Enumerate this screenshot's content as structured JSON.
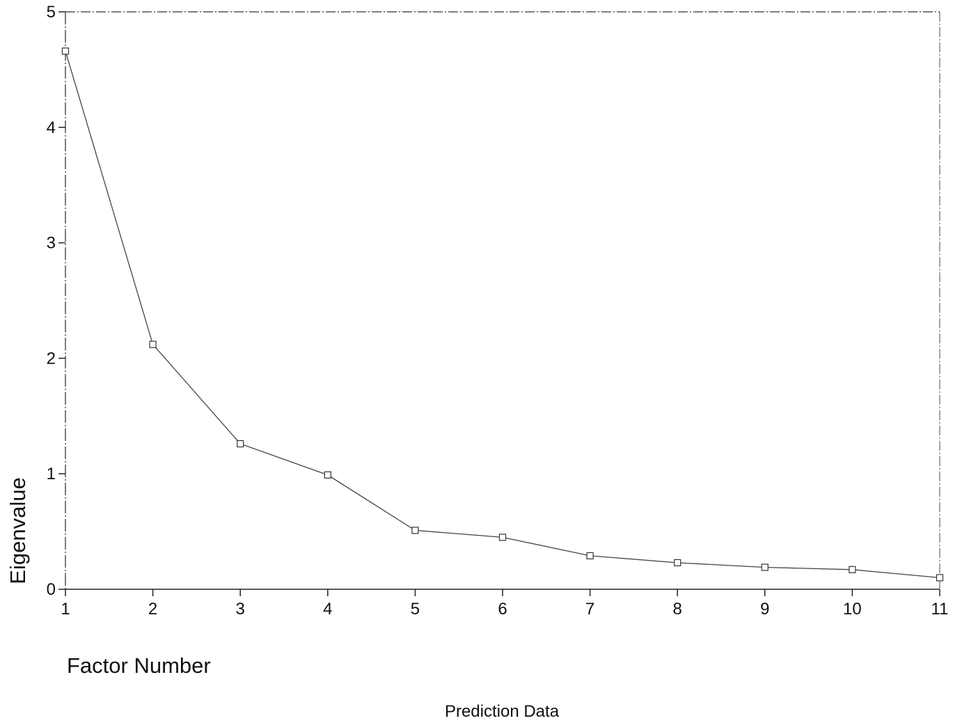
{
  "chart_data": {
    "type": "line",
    "title": "",
    "xlabel": "Factor Number",
    "ylabel": "Eigenvalue",
    "caption": "Prediction Data",
    "x": [
      1,
      2,
      3,
      4,
      5,
      6,
      7,
      8,
      9,
      10,
      11
    ],
    "xlim": [
      1,
      11
    ],
    "ylim": [
      0,
      5
    ],
    "x_ticks": [
      1,
      2,
      3,
      4,
      5,
      6,
      7,
      8,
      9,
      10,
      11
    ],
    "y_ticks": [
      0,
      1,
      2,
      3,
      4,
      5
    ],
    "grid": false,
    "marker": "square",
    "series": [
      {
        "values": [
          4.66,
          2.12,
          1.26,
          0.99,
          0.51,
          0.45,
          0.29,
          0.23,
          0.19,
          0.17,
          0.1
        ]
      }
    ]
  }
}
